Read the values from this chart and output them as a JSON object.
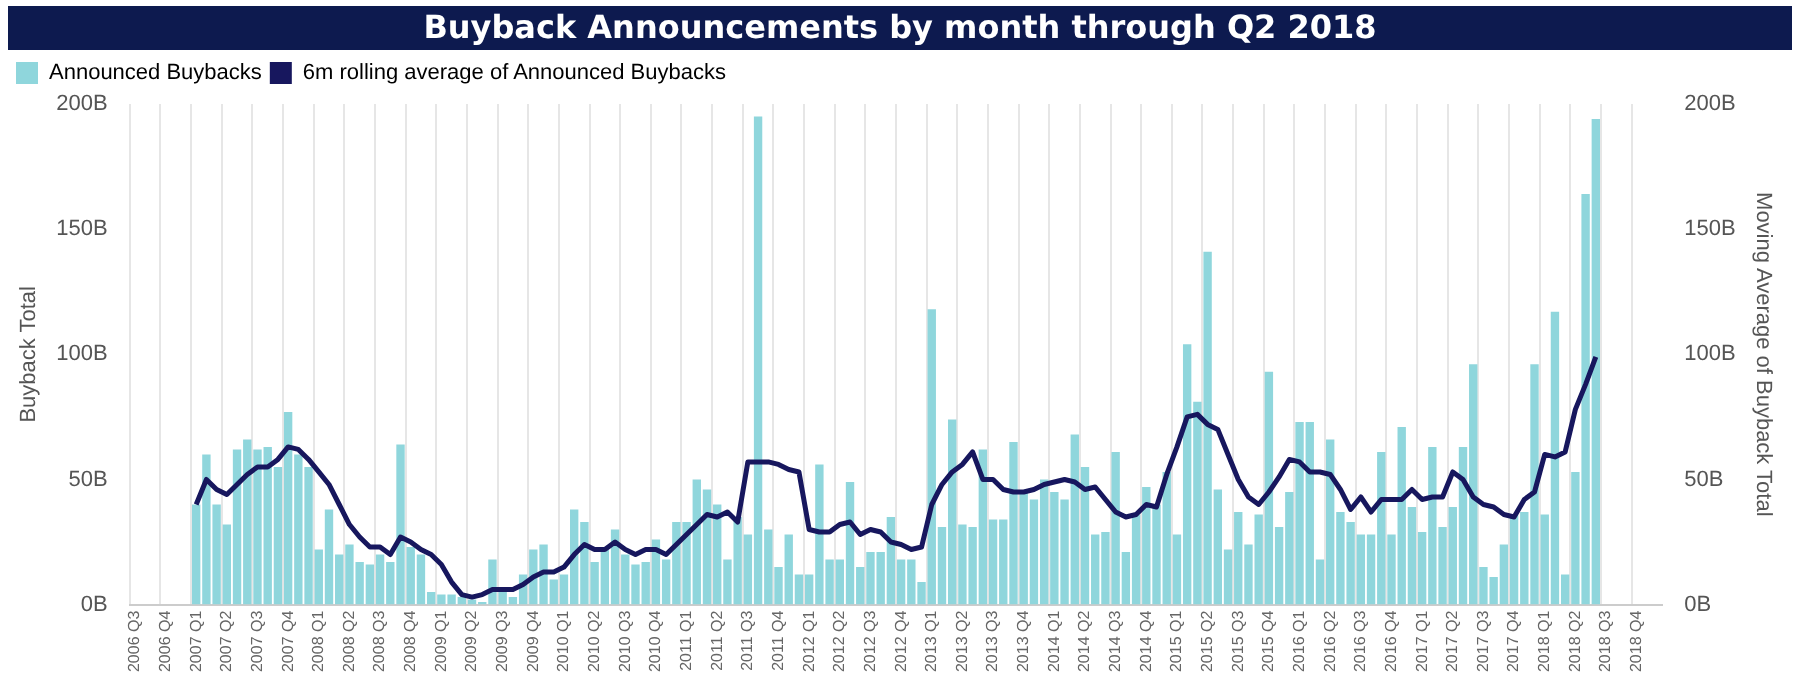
{
  "chart_data": {
    "type": "bar",
    "title": "Buyback Announcements by month through Q2 2018",
    "ylabel": "Buyback Total",
    "y2label": "Moving Average of Buyback Total",
    "categories": [
      "2006 Q3",
      null,
      null,
      "2006 Q4",
      null,
      null,
      "2007 Q1",
      null,
      null,
      "2007 Q2",
      null,
      null,
      "2007 Q3",
      null,
      null,
      "2007 Q4",
      null,
      null,
      "2008 Q1",
      null,
      null,
      "2008 Q2",
      null,
      null,
      "2008 Q3",
      null,
      null,
      "2008 Q4",
      null,
      null,
      "2009 Q1",
      null,
      null,
      "2009 Q2",
      null,
      null,
      "2009 Q3",
      null,
      null,
      "2009 Q4",
      null,
      null,
      "2010 Q1",
      null,
      null,
      "2010 Q2",
      null,
      null,
      "2010 Q3",
      null,
      null,
      "2010 Q4",
      null,
      null,
      "2011 Q1",
      null,
      null,
      "2011 Q2",
      null,
      null,
      "2011 Q3",
      null,
      null,
      "2011 Q4",
      null,
      null,
      "2012 Q1",
      null,
      null,
      "2012 Q2",
      null,
      null,
      "2012 Q3",
      null,
      null,
      "2012 Q4",
      null,
      null,
      "2013 Q1",
      null,
      null,
      "2013 Q2",
      null,
      null,
      "2013 Q3",
      null,
      null,
      "2013 Q4",
      null,
      null,
      "2014 Q1",
      null,
      null,
      "2014 Q2",
      null,
      null,
      "2014 Q3",
      null,
      null,
      "2014 Q4",
      null,
      null,
      "2015 Q1",
      null,
      null,
      "2015 Q2",
      null,
      null,
      "2015 Q3",
      null,
      null,
      "2015 Q4",
      null,
      null,
      "2016 Q1",
      null,
      null,
      "2016 Q2",
      null,
      null,
      "2016 Q3",
      null,
      null,
      "2016 Q4",
      null,
      null,
      "2017 Q1",
      null,
      null,
      "2017 Q2",
      null,
      null,
      "2017 Q3",
      null,
      null,
      "2017 Q4",
      null,
      null,
      "2018 Q1",
      null,
      null,
      "2018 Q2",
      null,
      null,
      "2018 Q3",
      null,
      null,
      "2018 Q4",
      null,
      null
    ],
    "series": [
      {
        "name": "Announced Buybacks",
        "color": "#8fd6dc",
        "values": [
          null,
          null,
          null,
          null,
          null,
          null,
          40,
          60,
          40,
          32,
          62,
          66,
          62,
          63,
          55,
          77,
          60,
          55,
          22,
          38,
          20,
          24,
          17,
          16,
          20,
          17,
          64,
          23,
          20,
          5,
          4,
          4,
          3,
          2,
          1,
          18,
          5,
          3,
          12,
          22,
          24,
          10,
          12,
          38,
          33,
          17,
          22,
          30,
          20,
          16,
          17,
          26,
          18,
          33,
          33,
          50,
          46,
          40,
          18,
          35,
          28,
          195,
          30,
          15,
          28,
          12,
          12,
          56,
          18,
          18,
          49,
          15,
          21,
          21,
          35,
          18,
          18,
          9,
          118,
          31,
          74,
          32,
          31,
          62,
          34,
          34,
          65,
          45,
          42,
          50,
          45,
          42,
          68,
          55,
          28,
          29,
          61,
          21,
          36,
          47,
          40,
          53,
          28,
          104,
          81,
          141,
          46,
          22,
          37,
          24,
          36,
          93,
          31,
          45,
          73,
          73,
          18,
          66,
          37,
          33,
          28,
          28,
          61,
          28,
          71,
          39,
          29,
          63,
          31,
          39,
          63,
          96,
          15,
          11,
          24,
          36,
          37,
          96,
          36,
          117,
          12,
          53,
          164,
          194,
          null,
          null,
          null,
          null,
          null,
          null
        ]
      },
      {
        "name": "6m rolling average of Announced Buybacks",
        "type": "line",
        "axis": "y2",
        "color": "#17175e",
        "values": [
          null,
          null,
          null,
          null,
          null,
          null,
          40,
          50,
          46,
          44,
          48,
          52,
          55,
          55,
          58,
          63,
          62,
          58,
          53,
          48,
          40,
          32,
          27,
          23,
          23,
          20,
          27,
          25,
          22,
          20,
          16,
          9,
          4,
          3,
          4,
          6,
          6,
          6,
          8,
          11,
          13,
          13,
          15,
          20,
          24,
          22,
          22,
          25,
          22,
          20,
          22,
          22,
          20,
          24,
          28,
          32,
          36,
          35,
          37,
          33,
          57,
          57,
          57,
          56,
          54,
          53,
          30,
          29,
          29,
          32,
          33,
          28,
          30,
          29,
          25,
          24,
          22,
          23,
          40,
          48,
          53,
          56,
          61,
          50,
          50,
          46,
          45,
          45,
          46,
          48,
          49,
          50,
          49,
          46,
          47,
          42,
          37,
          35,
          36,
          40,
          39,
          52,
          63,
          75,
          76,
          72,
          70,
          60,
          50,
          43,
          40,
          45,
          51,
          58,
          57,
          53,
          53,
          52,
          46,
          38,
          43,
          37,
          42,
          42,
          42,
          46,
          42,
          43,
          43,
          53,
          50,
          43,
          40,
          39,
          36,
          35,
          42,
          45,
          60,
          59,
          61,
          78,
          88,
          99,
          null,
          null,
          null,
          null,
          null,
          null
        ]
      }
    ],
    "ylim": [
      0,
      200
    ],
    "yticks": [
      {
        "value": 0,
        "label": "0B"
      },
      {
        "value": 50,
        "label": "50B"
      },
      {
        "value": 100,
        "label": "100B"
      },
      {
        "value": 150,
        "label": "150B"
      },
      {
        "value": 200,
        "label": "200B"
      }
    ],
    "y2lim": [
      0,
      200
    ],
    "y2ticks": [
      {
        "value": 0,
        "label": "0B"
      },
      {
        "value": 50,
        "label": "50B"
      },
      {
        "value": 100,
        "label": "100B"
      },
      {
        "value": 150,
        "label": "150B"
      },
      {
        "value": 200,
        "label": "200B"
      }
    ],
    "grid": "x",
    "legend": "top left",
    "marker": "none"
  }
}
